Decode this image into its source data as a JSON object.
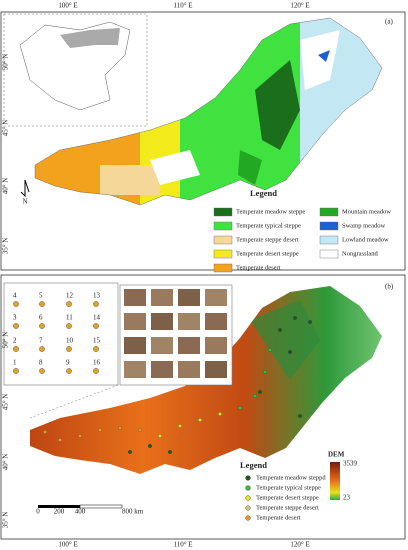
{
  "panel_a": {
    "label": "(a)",
    "lon_labels": [
      "100° E",
      "110° E",
      "120° E"
    ],
    "lat_labels": [
      "50° N",
      "45° N",
      "40° N",
      "35° N"
    ],
    "north": "N",
    "legend": {
      "title": "Legend",
      "items": [
        {
          "name": "Temperate meadow steppe",
          "color": "#1b6e1b"
        },
        {
          "name": "Temperate typical steppe",
          "color": "#3fe23f"
        },
        {
          "name": "Temperate steppe desert",
          "color": "#f6d79a"
        },
        {
          "name": "Temperate desert steppe",
          "color": "#f2ea1a"
        },
        {
          "name": "Temperate desert",
          "color": "#f2a21c"
        },
        {
          "name": "Mountain meadow",
          "color": "#23a823"
        },
        {
          "name": "Swamp meadow",
          "color": "#1f5fd6"
        },
        {
          "name": "Lowland meadow",
          "color": "#c4e7f4"
        },
        {
          "name": "Nongrassland",
          "color": "#ffffff"
        }
      ]
    }
  },
  "panel_b": {
    "label": "(b)",
    "lon_labels": [
      "100° E",
      "110° E",
      "120° E"
    ],
    "lat_labels": [
      "50° N",
      "45° N",
      "40° N",
      "35° N"
    ],
    "sample_ids": [
      "4",
      "3",
      "2",
      "1",
      "5",
      "6",
      "7",
      "8",
      "12",
      "11",
      "10",
      "9",
      "13",
      "14",
      "15",
      "16"
    ],
    "legend": {
      "title": "Legend",
      "items": [
        {
          "name": "Temperate meadow steppd",
          "color": "#1d5a1d"
        },
        {
          "name": "Temperate typical steppe",
          "color": "#2fbf3a"
        },
        {
          "name": "Temperate desert steppe",
          "color": "#e6e21a"
        },
        {
          "name": "Temperate steppe desert",
          "color": "#c8c48a"
        },
        {
          "name": "Temperate desert",
          "color": "#e89a22"
        }
      ]
    },
    "dem": {
      "title": "DEM",
      "max": 3539,
      "min": 23
    },
    "scale": [
      "0",
      "200",
      "400",
      "800 km"
    ]
  }
}
